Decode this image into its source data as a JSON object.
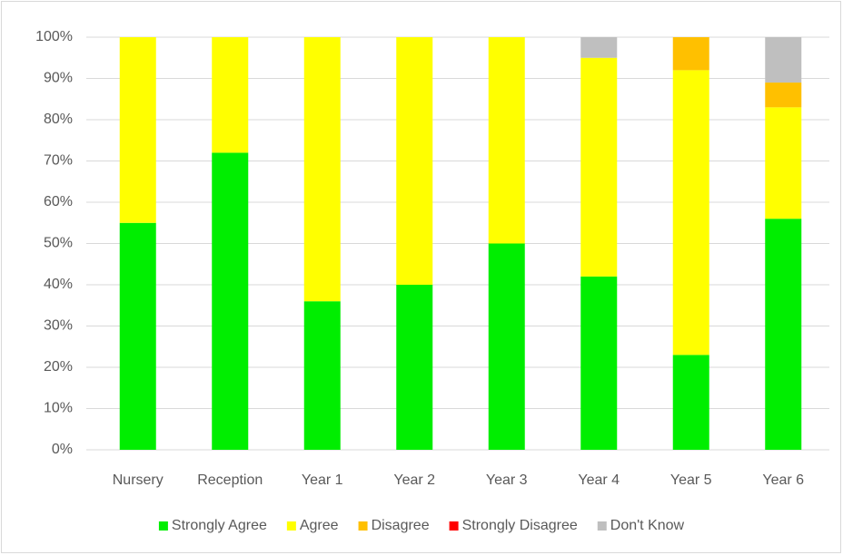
{
  "chart_data": {
    "type": "stacked_bar",
    "categories": [
      "Nursery",
      "Reception",
      "Year 1",
      "Year 2",
      "Year 3",
      "Year 4",
      "Year 5",
      "Year 6"
    ],
    "series": [
      {
        "name": "Strongly Agree",
        "color": "#00ee00",
        "values": [
          55,
          72,
          36,
          40,
          50,
          42,
          23,
          56
        ]
      },
      {
        "name": "Agree",
        "color": "#ffff00",
        "values": [
          45,
          28,
          64,
          60,
          50,
          53,
          69,
          27
        ]
      },
      {
        "name": "Disagree",
        "color": "#ffc000",
        "values": [
          0,
          0,
          0,
          0,
          0,
          0,
          8,
          6
        ]
      },
      {
        "name": "Strongly Disagree",
        "color": "#ff0000",
        "values": [
          0,
          0,
          0,
          0,
          0,
          0,
          0,
          0
        ]
      },
      {
        "name": "Don't Know",
        "color": "#bfbfbf",
        "values": [
          0,
          0,
          0,
          0,
          0,
          5,
          0,
          11
        ]
      }
    ],
    "ylim": [
      0,
      100
    ],
    "yticks": [
      {
        "value": 0,
        "label": "0%"
      },
      {
        "value": 10,
        "label": "10%"
      },
      {
        "value": 20,
        "label": "20%"
      },
      {
        "value": 30,
        "label": "30%"
      },
      {
        "value": 40,
        "label": "40%"
      },
      {
        "value": 50,
        "label": "50%"
      },
      {
        "value": 60,
        "label": "60%"
      },
      {
        "value": 70,
        "label": "70%"
      },
      {
        "value": 80,
        "label": "80%"
      },
      {
        "value": 90,
        "label": "90%"
      },
      {
        "value": 100,
        "label": "100%"
      }
    ],
    "grid": true,
    "legend": "bottom"
  }
}
